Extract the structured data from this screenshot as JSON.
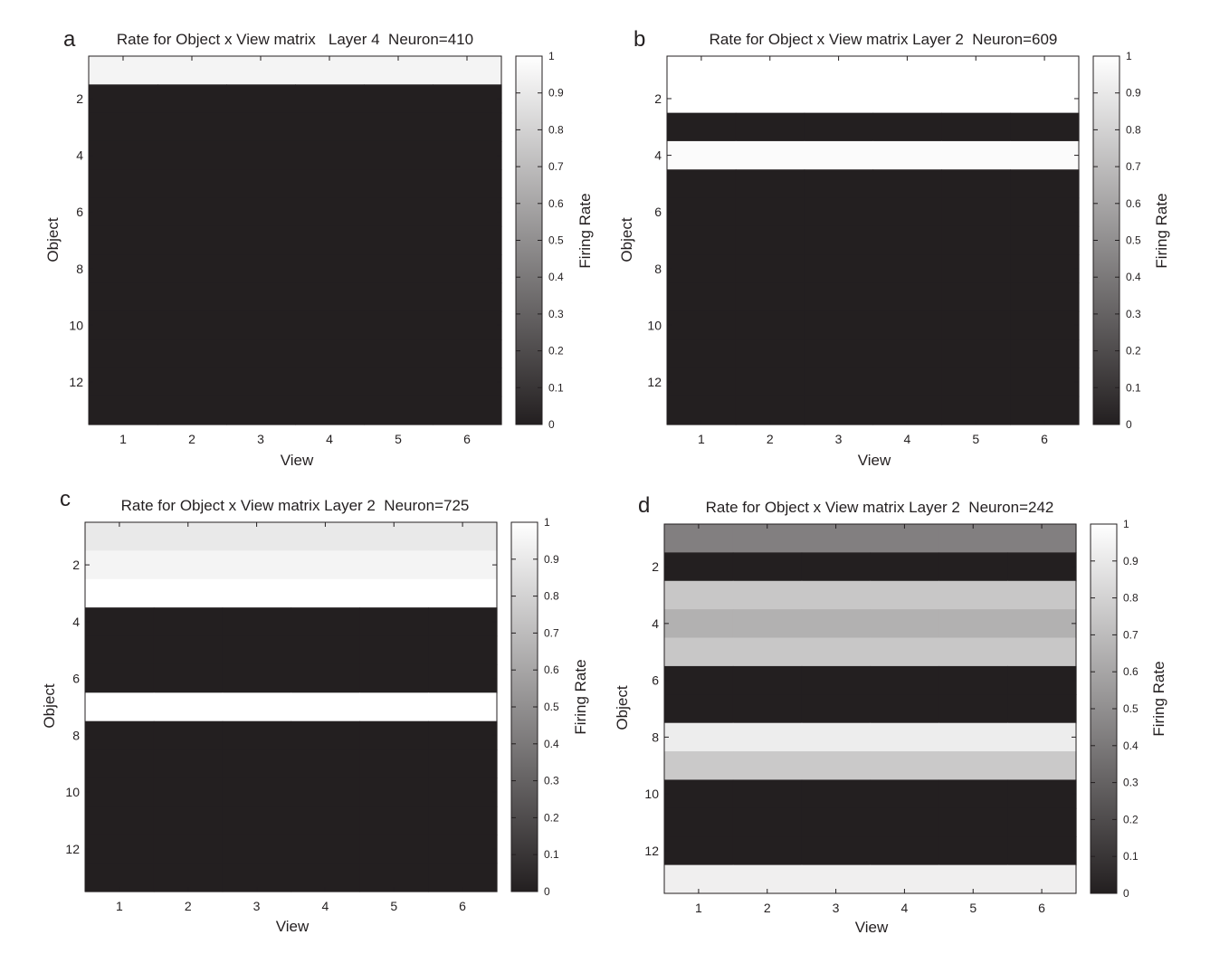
{
  "colorbar_label": "Firing Rate",
  "chart_data": [
    {
      "panel_letter": "a",
      "type": "heatmap",
      "title": "Rate for Object x View matrix   Layer 4  Neuron=410",
      "xlabel": "View",
      "ylabel": "Object",
      "x_categories": [
        1,
        2,
        3,
        4,
        5,
        6
      ],
      "y_rows": 13,
      "y_ticks": [
        2,
        4,
        6,
        8,
        10,
        12
      ],
      "colorbar_ticks": [
        "0",
        "0.1",
        "0.2",
        "0.3",
        "0.4",
        "0.5",
        "0.6",
        "0.7",
        "0.8",
        "0.9",
        "1"
      ],
      "clim": [
        0,
        1
      ],
      "colormap": "gray",
      "row_values": [
        0.95,
        0,
        0,
        0,
        0,
        0,
        0,
        0,
        0,
        0,
        0,
        0,
        0
      ]
    },
    {
      "panel_letter": "b",
      "type": "heatmap",
      "title": "Rate for Object x View matrix Layer 2  Neuron=609",
      "xlabel": "View",
      "ylabel": "Object",
      "x_categories": [
        1,
        2,
        3,
        4,
        5,
        6
      ],
      "y_rows": 13,
      "y_ticks": [
        2,
        4,
        6,
        8,
        10,
        12
      ],
      "colorbar_ticks": [
        "0",
        "0.1",
        "0.2",
        "0.3",
        "0.4",
        "0.5",
        "0.6",
        "0.7",
        "0.8",
        "0.9",
        "1"
      ],
      "clim": [
        0,
        1
      ],
      "colormap": "gray",
      "row_values": [
        1,
        1,
        0,
        0.98,
        0,
        0,
        0,
        0,
        0,
        0,
        0,
        0,
        0
      ]
    },
    {
      "panel_letter": "c",
      "type": "heatmap",
      "title": "Rate for Object x View matrix Layer 2  Neuron=725",
      "xlabel": "View",
      "ylabel": "Object",
      "x_categories": [
        1,
        2,
        3,
        4,
        5,
        6
      ],
      "y_rows": 13,
      "y_ticks": [
        2,
        4,
        6,
        8,
        10,
        12
      ],
      "colorbar_ticks": [
        "0",
        "0.1",
        "0.2",
        "0.3",
        "0.4",
        "0.5",
        "0.6",
        "0.7",
        "0.8",
        "0.9",
        "1"
      ],
      "clim": [
        0,
        1
      ],
      "colormap": "gray",
      "row_values": [
        0.9,
        0.95,
        1,
        0,
        0,
        0,
        1,
        0,
        0,
        0,
        0,
        0,
        0
      ]
    },
    {
      "panel_letter": "d",
      "type": "heatmap",
      "title": "Rate for Object x View matrix Layer 2  Neuron=242",
      "xlabel": "View",
      "ylabel": "Object",
      "x_categories": [
        1,
        2,
        3,
        4,
        5,
        6
      ],
      "y_rows": 13,
      "y_ticks": [
        2,
        4,
        6,
        8,
        10,
        12
      ],
      "colorbar_ticks": [
        "0",
        "0.1",
        "0.2",
        "0.3",
        "0.4",
        "0.5",
        "0.6",
        "0.7",
        "0.8",
        "0.9",
        "1"
      ],
      "clim": [
        0,
        1
      ],
      "colormap": "gray",
      "row_values": [
        0.43,
        0,
        0.75,
        0.65,
        0.75,
        0,
        0,
        0.92,
        0.76,
        0,
        0,
        0,
        0.93
      ]
    }
  ]
}
